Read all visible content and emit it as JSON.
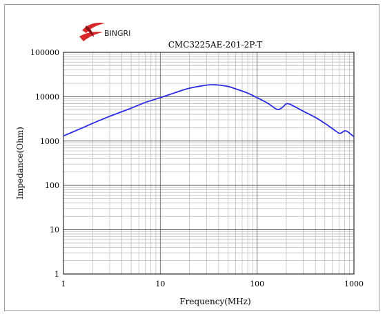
{
  "brand": {
    "name": "BINGRI",
    "colors": {
      "red": "#d8262a",
      "dark_red": "#8e1216"
    }
  },
  "chart_data": {
    "type": "line",
    "title": "CMC3225AE-201-2P-T",
    "xlabel": "Frequency(MHz)",
    "ylabel": "Impedance(Ohm)",
    "x_scale": "log",
    "y_scale": "log",
    "xlim": [
      1,
      1000
    ],
    "ylim": [
      1,
      100000
    ],
    "grid": true,
    "x_ticks": [
      1,
      10,
      100,
      1000
    ],
    "x_tick_labels": [
      "1",
      "10",
      "100",
      "1000"
    ],
    "y_ticks": [
      1,
      10,
      100,
      1000,
      10000,
      100000
    ],
    "y_tick_labels": [
      "1",
      "10",
      "100",
      "1000",
      "10000",
      "100000"
    ],
    "series": [
      {
        "color": "#2a2ae6",
        "x": [
          1,
          1.5,
          2,
          3,
          5,
          7,
          10,
          15,
          20,
          30,
          35,
          40,
          50,
          60,
          80,
          100,
          130,
          160,
          180,
          200,
          220,
          250,
          300,
          400,
          500,
          600,
          700,
          750,
          800,
          850,
          900,
          1000
        ],
        "y": [
          1300,
          1900,
          2500,
          3600,
          5500,
          7400,
          9500,
          12800,
          15500,
          18200,
          18500,
          18300,
          17000,
          15000,
          12000,
          9500,
          7000,
          5200,
          5600,
          6900,
          6700,
          5800,
          4700,
          3400,
          2500,
          1900,
          1500,
          1550,
          1700,
          1650,
          1500,
          1250
        ]
      }
    ]
  }
}
